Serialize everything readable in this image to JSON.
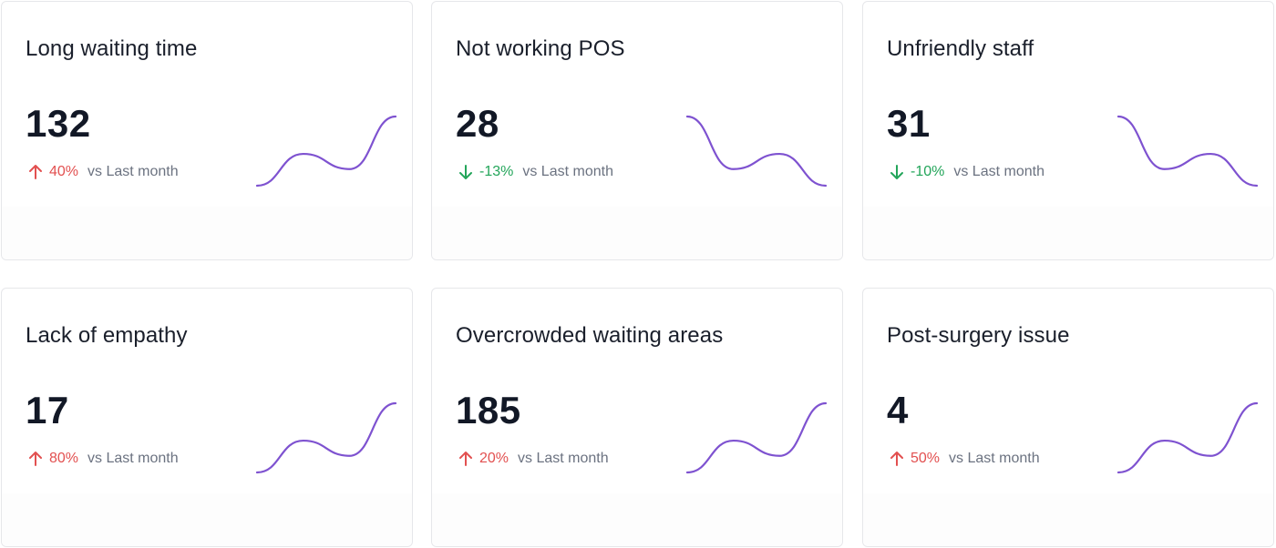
{
  "accent_color": "#7e52d0",
  "up_color": "#e25050",
  "down_color": "#23a55a",
  "cards": [
    {
      "title": "Long waiting time",
      "value": "132",
      "direction": "up",
      "change": "40%",
      "comparison": "vs  Last month",
      "sparkline": [
        0.0,
        0.46,
        0.24,
        1.0
      ]
    },
    {
      "title": "Not working POS",
      "value": "28",
      "direction": "down",
      "change": "-13%",
      "comparison": "vs Last month",
      "sparkline": [
        1.0,
        0.24,
        0.46,
        0.0
      ]
    },
    {
      "title": "Unfriendly staff",
      "value": "31",
      "direction": "down",
      "change": "-10%",
      "comparison": "vs Last month",
      "sparkline": [
        1.0,
        0.24,
        0.46,
        0.0
      ]
    },
    {
      "title": "Lack of empathy",
      "value": "17",
      "direction": "up",
      "change": "80%",
      "comparison": "vs Last month",
      "sparkline": [
        0.0,
        0.46,
        0.24,
        1.0
      ]
    },
    {
      "title": "Overcrowded waiting areas",
      "value": "185",
      "direction": "up",
      "change": "20%",
      "comparison": "vs Last month",
      "sparkline": [
        0.0,
        0.46,
        0.24,
        1.0
      ]
    },
    {
      "title": "Post-surgery issue",
      "value": "4",
      "direction": "up",
      "change": "50%",
      "comparison": "vs Last month",
      "sparkline": [
        0.0,
        0.46,
        0.24,
        1.0
      ]
    }
  ]
}
